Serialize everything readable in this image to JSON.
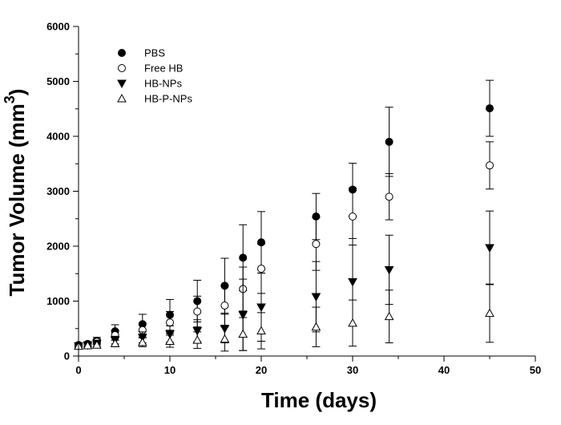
{
  "chart_data": {
    "type": "scatter",
    "title": "",
    "xlabel": "Time (days)",
    "ylabel": "Tumor Volume (mm",
    "ylabel_sup": "3",
    "ylabel_end": ")",
    "xlim": [
      0,
      50
    ],
    "ylim": [
      0,
      6000
    ],
    "x_ticks": [
      0,
      10,
      20,
      30,
      40,
      50
    ],
    "y_ticks": [
      0,
      1000,
      2000,
      3000,
      4000,
      5000,
      6000
    ],
    "grid": false,
    "legend_position": "top-left",
    "series": [
      {
        "name": "PBS",
        "marker": "filled-circle",
        "points": [
          {
            "x": 0,
            "y": 200,
            "err": 30
          },
          {
            "x": 1,
            "y": 220,
            "err": 40
          },
          {
            "x": 2,
            "y": 280,
            "err": 60
          },
          {
            "x": 4,
            "y": 450,
            "err": 120
          },
          {
            "x": 7,
            "y": 580,
            "err": 180
          },
          {
            "x": 10,
            "y": 750,
            "err": 280
          },
          {
            "x": 13,
            "y": 1000,
            "err": 380
          },
          {
            "x": 16,
            "y": 1280,
            "err": 500
          },
          {
            "x": 18,
            "y": 1790,
            "err": 600
          },
          {
            "x": 20,
            "y": 2070,
            "err": 560
          },
          {
            "x": 26,
            "y": 2540,
            "err": 420
          },
          {
            "x": 30,
            "y": 3030,
            "err": 480
          },
          {
            "x": 34,
            "y": 3900,
            "err": 630
          },
          {
            "x": 45,
            "y": 4510,
            "err": 510
          }
        ]
      },
      {
        "name": "Free HB",
        "marker": "open-circle",
        "points": [
          {
            "x": 0,
            "y": 190,
            "err": 30
          },
          {
            "x": 1,
            "y": 210,
            "err": 40
          },
          {
            "x": 2,
            "y": 260,
            "err": 50
          },
          {
            "x": 4,
            "y": 380,
            "err": 90
          },
          {
            "x": 7,
            "y": 470,
            "err": 120
          },
          {
            "x": 10,
            "y": 610,
            "err": 200
          },
          {
            "x": 13,
            "y": 810,
            "err": 280
          },
          {
            "x": 16,
            "y": 920,
            "err": 360
          },
          {
            "x": 18,
            "y": 1220,
            "err": 400
          },
          {
            "x": 20,
            "y": 1590,
            "err": 450
          },
          {
            "x": 26,
            "y": 2040,
            "err": 480
          },
          {
            "x": 30,
            "y": 2540,
            "err": 520
          },
          {
            "x": 34,
            "y": 2900,
            "err": 420
          },
          {
            "x": 45,
            "y": 3470,
            "err": 430
          }
        ]
      },
      {
        "name": "HB-NPs",
        "marker": "filled-triangle-down",
        "points": [
          {
            "x": 0,
            "y": 185,
            "err": 25
          },
          {
            "x": 1,
            "y": 200,
            "err": 35
          },
          {
            "x": 2,
            "y": 230,
            "err": 45
          },
          {
            "x": 4,
            "y": 290,
            "err": 70
          },
          {
            "x": 7,
            "y": 340,
            "err": 100
          },
          {
            "x": 10,
            "y": 400,
            "err": 150
          },
          {
            "x": 13,
            "y": 460,
            "err": 200
          },
          {
            "x": 16,
            "y": 500,
            "err": 260
          },
          {
            "x": 18,
            "y": 750,
            "err": 650
          },
          {
            "x": 20,
            "y": 890,
            "err": 620
          },
          {
            "x": 26,
            "y": 1080,
            "err": 640
          },
          {
            "x": 30,
            "y": 1350,
            "err": 790
          },
          {
            "x": 34,
            "y": 1570,
            "err": 630
          },
          {
            "x": 45,
            "y": 1970,
            "err": 670
          }
        ]
      },
      {
        "name": "HB-P-NPs",
        "marker": "open-triangle-up",
        "points": [
          {
            "x": 0,
            "y": 180,
            "err": 20
          },
          {
            "x": 1,
            "y": 190,
            "err": 30
          },
          {
            "x": 2,
            "y": 200,
            "err": 40
          },
          {
            "x": 4,
            "y": 230,
            "err": 60
          },
          {
            "x": 7,
            "y": 250,
            "err": 80
          },
          {
            "x": 10,
            "y": 270,
            "err": 110
          },
          {
            "x": 13,
            "y": 290,
            "err": 150
          },
          {
            "x": 16,
            "y": 310,
            "err": 220
          },
          {
            "x": 18,
            "y": 400,
            "err": 300
          },
          {
            "x": 20,
            "y": 460,
            "err": 330
          },
          {
            "x": 26,
            "y": 530,
            "err": 360
          },
          {
            "x": 30,
            "y": 600,
            "err": 420
          },
          {
            "x": 34,
            "y": 720,
            "err": 480
          },
          {
            "x": 45,
            "y": 780,
            "err": 530
          }
        ]
      }
    ]
  }
}
